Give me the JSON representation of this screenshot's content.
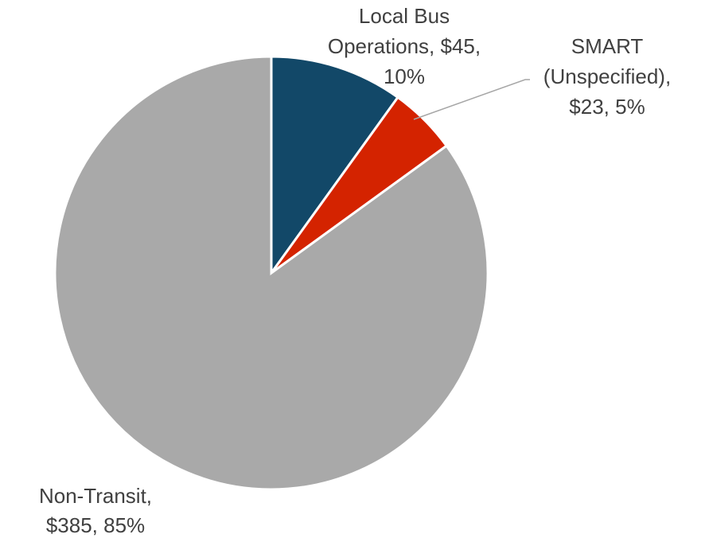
{
  "chart_data": {
    "type": "pie",
    "values": [
      45,
      23,
      385
    ],
    "colors": [
      "#124868",
      "#d42300",
      "#a9a9a9"
    ],
    "label_lines": [
      [
        "Local Bus",
        "Operations, $45,",
        "10%"
      ],
      [
        "SMART",
        "(Unspecified),",
        "$23, 5%"
      ],
      [
        "Non-Transit,",
        "$385, 85%"
      ]
    ]
  }
}
